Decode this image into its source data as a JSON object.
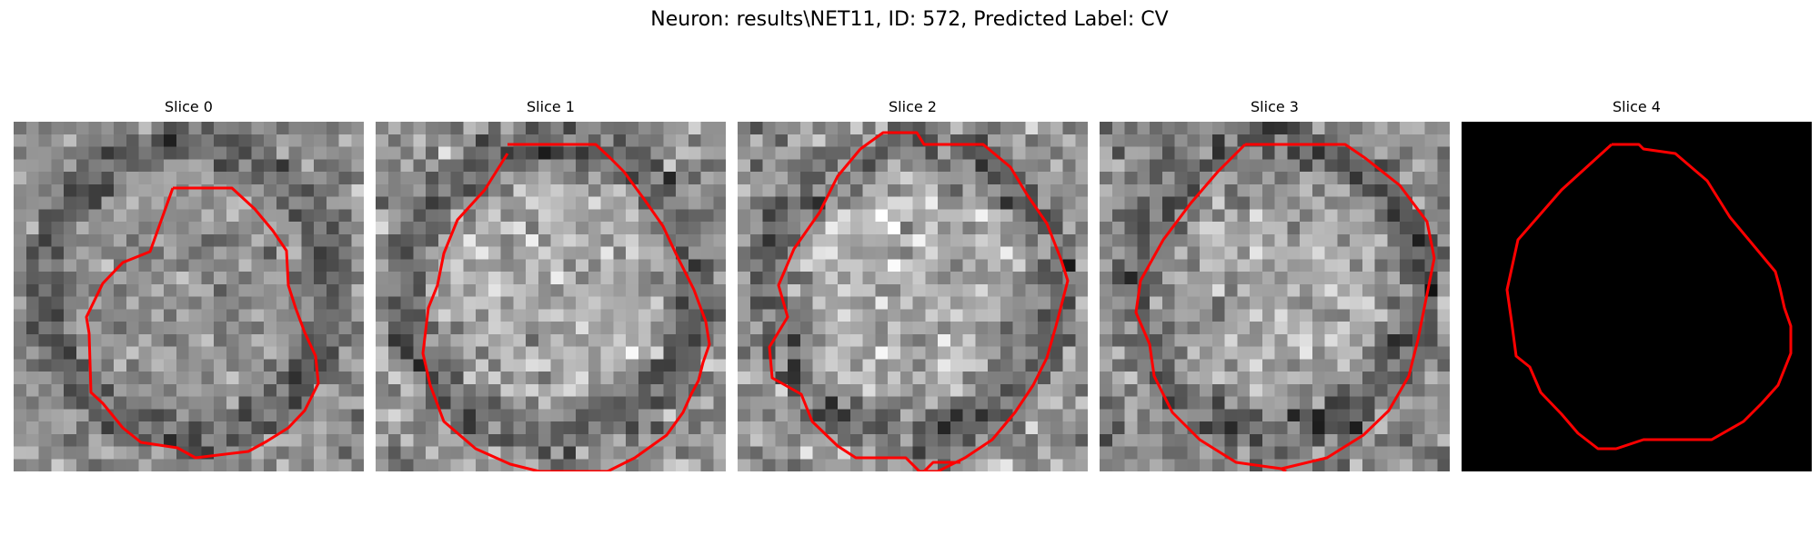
{
  "figure": {
    "title": "Neuron: results\\NET11, ID: 572, Predicted Label: CV"
  },
  "panels": [
    {
      "title": "Slice 0"
    },
    {
      "title": "Slice 1"
    },
    {
      "title": "Slice 2"
    },
    {
      "title": "Slice 3"
    },
    {
      "title": "Slice 4"
    }
  ],
  "colors": {
    "contour": "#ff0000",
    "mask_background": "#000000"
  }
}
